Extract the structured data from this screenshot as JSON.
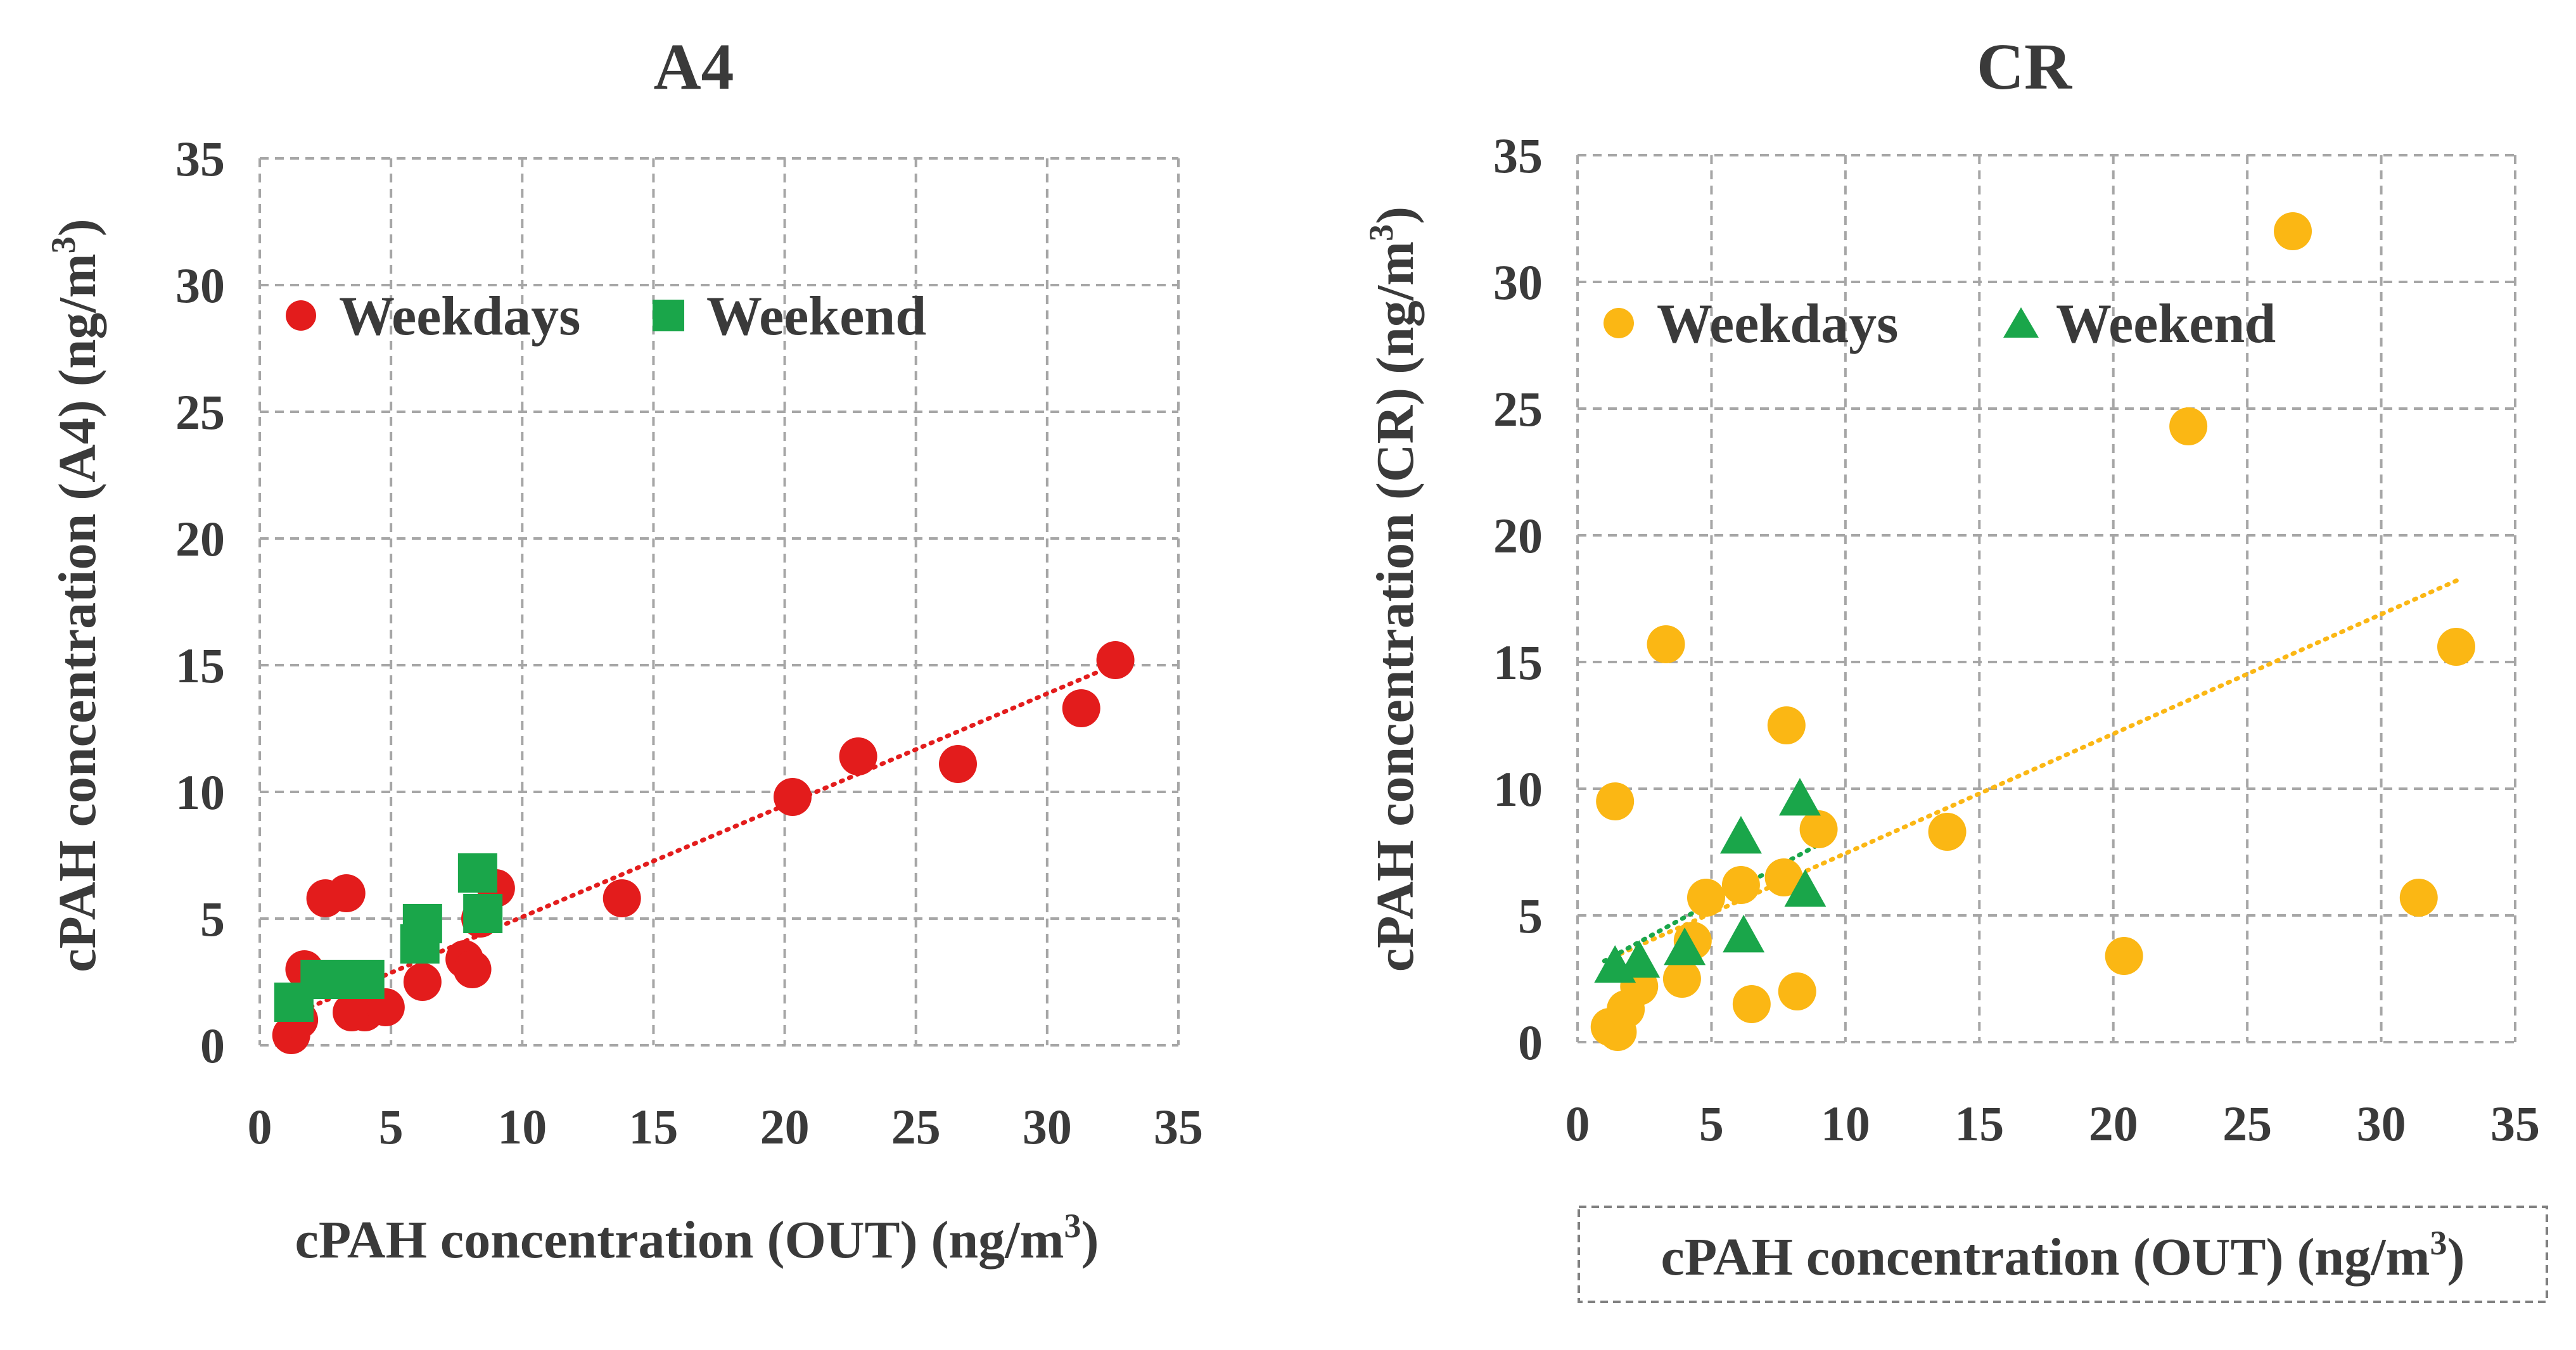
{
  "chart_data": [
    {
      "type": "scatter",
      "title": "A4",
      "xlabel": "cPAH concentration (OUT) (ng/m³)",
      "xlabel_main": "cPAH concentration (OUT) (ng/m",
      "xlabel_sup": "3",
      "xlabel_end": ")",
      "ylabel": "cPAH concentration (A4) (ng/m³)",
      "ylabel_main": "cPAH concentration (A4) (ng/m",
      "ylabel_sup": "3",
      "ylabel_end": ")",
      "xlim": [
        0,
        35
      ],
      "ylim": [
        0,
        35
      ],
      "xticks": [
        0,
        5,
        10,
        15,
        20,
        25,
        30,
        35
      ],
      "yticks": [
        0,
        5,
        10,
        15,
        20,
        25,
        30,
        35
      ],
      "grid": true,
      "legend_position": "top-left",
      "series": [
        {
          "name": "Weekdays",
          "marker": "circle",
          "color": "#e31c1c",
          "points": [
            [
              1.2,
              0.4
            ],
            [
              1.5,
              1.0
            ],
            [
              1.7,
              3.0
            ],
            [
              2.5,
              5.8
            ],
            [
              3.3,
              6.0
            ],
            [
              3.5,
              1.3
            ],
            [
              4.0,
              1.3
            ],
            [
              4.8,
              1.5
            ],
            [
              6.2,
              2.5
            ],
            [
              7.8,
              3.4
            ],
            [
              8.1,
              3.0
            ],
            [
              8.4,
              5.0
            ],
            [
              9.0,
              6.2
            ],
            [
              13.8,
              5.8
            ],
            [
              20.3,
              9.8
            ],
            [
              22.8,
              11.4
            ],
            [
              26.6,
              11.1
            ],
            [
              31.3,
              13.3
            ],
            [
              32.6,
              15.2
            ]
          ]
        },
        {
          "name": "Weekend",
          "marker": "square",
          "color": "#1aa64a",
          "points": [
            [
              1.3,
              1.7
            ],
            [
              2.3,
              2.6
            ],
            [
              3.2,
              2.6
            ],
            [
              4.0,
              2.6
            ],
            [
              6.1,
              4.0
            ],
            [
              6.2,
              4.8
            ],
            [
              8.3,
              6.8
            ],
            [
              8.5,
              5.2
            ]
          ]
        }
      ],
      "trendlines": [
        {
          "series": "Weekdays",
          "color": "#e31c1c",
          "points": [
            [
              1.0,
              1.1
            ],
            [
              33.0,
              15.2
            ]
          ]
        }
      ]
    },
    {
      "type": "scatter",
      "title": "CR",
      "xlabel": "cPAH concentration (OUT) (ng/m³)",
      "xlabel_main": "cPAH concentration (OUT) (ng/m",
      "xlabel_sup": "3",
      "xlabel_end": ")",
      "ylabel": "cPAH concentration (CR) (ng/m³)",
      "ylabel_main": "cPAH concentration (CR) (ng/m",
      "ylabel_sup": "3",
      "ylabel_end": ")",
      "xlim": [
        0,
        35
      ],
      "ylim": [
        0,
        35
      ],
      "xticks": [
        0,
        5,
        10,
        15,
        20,
        25,
        30,
        35
      ],
      "yticks": [
        0,
        5,
        10,
        15,
        20,
        25,
        30,
        35
      ],
      "grid": true,
      "legend_position": "top-left",
      "series": [
        {
          "name": "Weekdays",
          "marker": "circle",
          "color": "#fbb714",
          "points": [
            [
              1.2,
              0.6
            ],
            [
              1.5,
              0.4
            ],
            [
              1.4,
              9.5
            ],
            [
              1.8,
              1.3
            ],
            [
              2.3,
              2.2
            ],
            [
              3.3,
              15.7
            ],
            [
              3.9,
              2.5
            ],
            [
              4.3,
              4.0
            ],
            [
              4.8,
              5.7
            ],
            [
              6.1,
              6.2
            ],
            [
              6.5,
              1.5
            ],
            [
              7.7,
              6.5
            ],
            [
              7.8,
              12.5
            ],
            [
              8.2,
              2.0
            ],
            [
              9.0,
              8.4
            ],
            [
              13.8,
              8.3
            ],
            [
              20.4,
              3.4
            ],
            [
              22.8,
              24.3
            ],
            [
              26.7,
              32.0
            ],
            [
              31.4,
              5.7
            ],
            [
              32.8,
              15.6
            ]
          ]
        },
        {
          "name": "Weekend",
          "marker": "triangle",
          "color": "#1aa64a",
          "points": [
            [
              1.4,
              3.0
            ],
            [
              2.3,
              3.2
            ],
            [
              4.0,
              3.7
            ],
            [
              6.1,
              8.1
            ],
            [
              6.2,
              4.2
            ],
            [
              8.3,
              9.6
            ],
            [
              8.5,
              6.0
            ]
          ]
        }
      ],
      "trendlines": [
        {
          "series": "Weekdays",
          "color": "#fbb714",
          "points": [
            [
              1.0,
              3.2
            ],
            [
              33.0,
              18.3
            ]
          ]
        },
        {
          "series": "Weekend",
          "color": "#1aa64a",
          "points": [
            [
              1.0,
              3.2
            ],
            [
              9.0,
              7.8
            ]
          ]
        }
      ]
    }
  ]
}
